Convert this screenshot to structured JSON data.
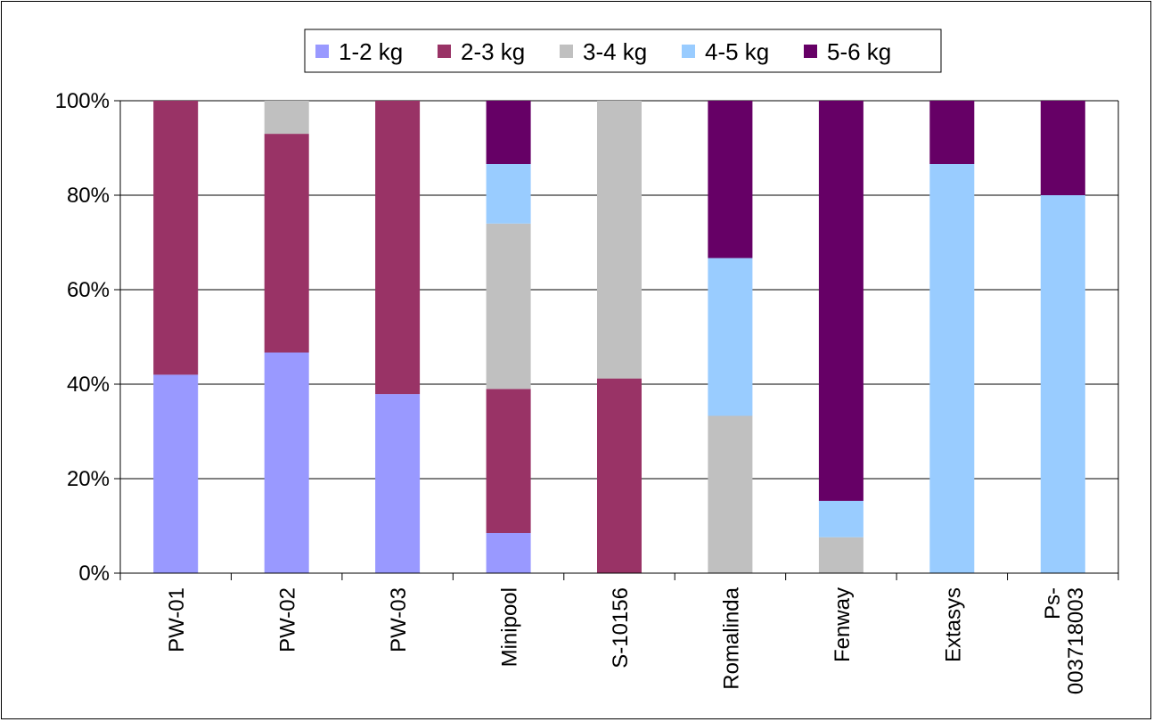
{
  "chart_data": {
    "type": "bar",
    "stacked": true,
    "normalized": true,
    "categories": [
      "PW-01",
      "PW-02",
      "PW-03",
      "Minipool",
      "S-10156",
      "Romalinda",
      "Fenway",
      "Extasys",
      "Ps-003718003"
    ],
    "category_label_lines": [
      [
        "PW-01"
      ],
      [
        "PW-02"
      ],
      [
        "PW-03"
      ],
      [
        "Minipool"
      ],
      [
        "S-10156"
      ],
      [
        "Romalinda"
      ],
      [
        "Fenway"
      ],
      [
        "Extasys"
      ],
      [
        "Ps-",
        "003718003"
      ]
    ],
    "series": [
      {
        "name": "1-2 kg",
        "color": "#9999ff",
        "values": [
          42,
          46.7,
          37.9,
          8.5,
          0,
          0,
          0,
          0,
          0
        ]
      },
      {
        "name": "2-3 kg",
        "color": "#993366",
        "values": [
          58,
          46.3,
          62.1,
          30.5,
          41.2,
          0,
          0,
          0,
          0
        ]
      },
      {
        "name": "3-4 kg",
        "color": "#c0c0c0",
        "values": [
          0,
          7,
          0,
          35,
          58.8,
          33.3,
          7.6,
          0,
          0
        ]
      },
      {
        "name": "4-5 kg",
        "color": "#99ccff",
        "values": [
          0,
          0,
          0,
          12.6,
          0,
          33.4,
          7.7,
          86.6,
          80
        ]
      },
      {
        "name": "5-6 kg",
        "color": "#660066",
        "values": [
          0,
          0,
          0,
          13.4,
          0,
          33.3,
          84.7,
          13.4,
          20
        ]
      }
    ],
    "ylim": [
      0,
      100
    ],
    "yticks": [
      "0%",
      "20%",
      "40%",
      "60%",
      "80%",
      "100%"
    ],
    "grid": true,
    "legend_position": "top"
  }
}
